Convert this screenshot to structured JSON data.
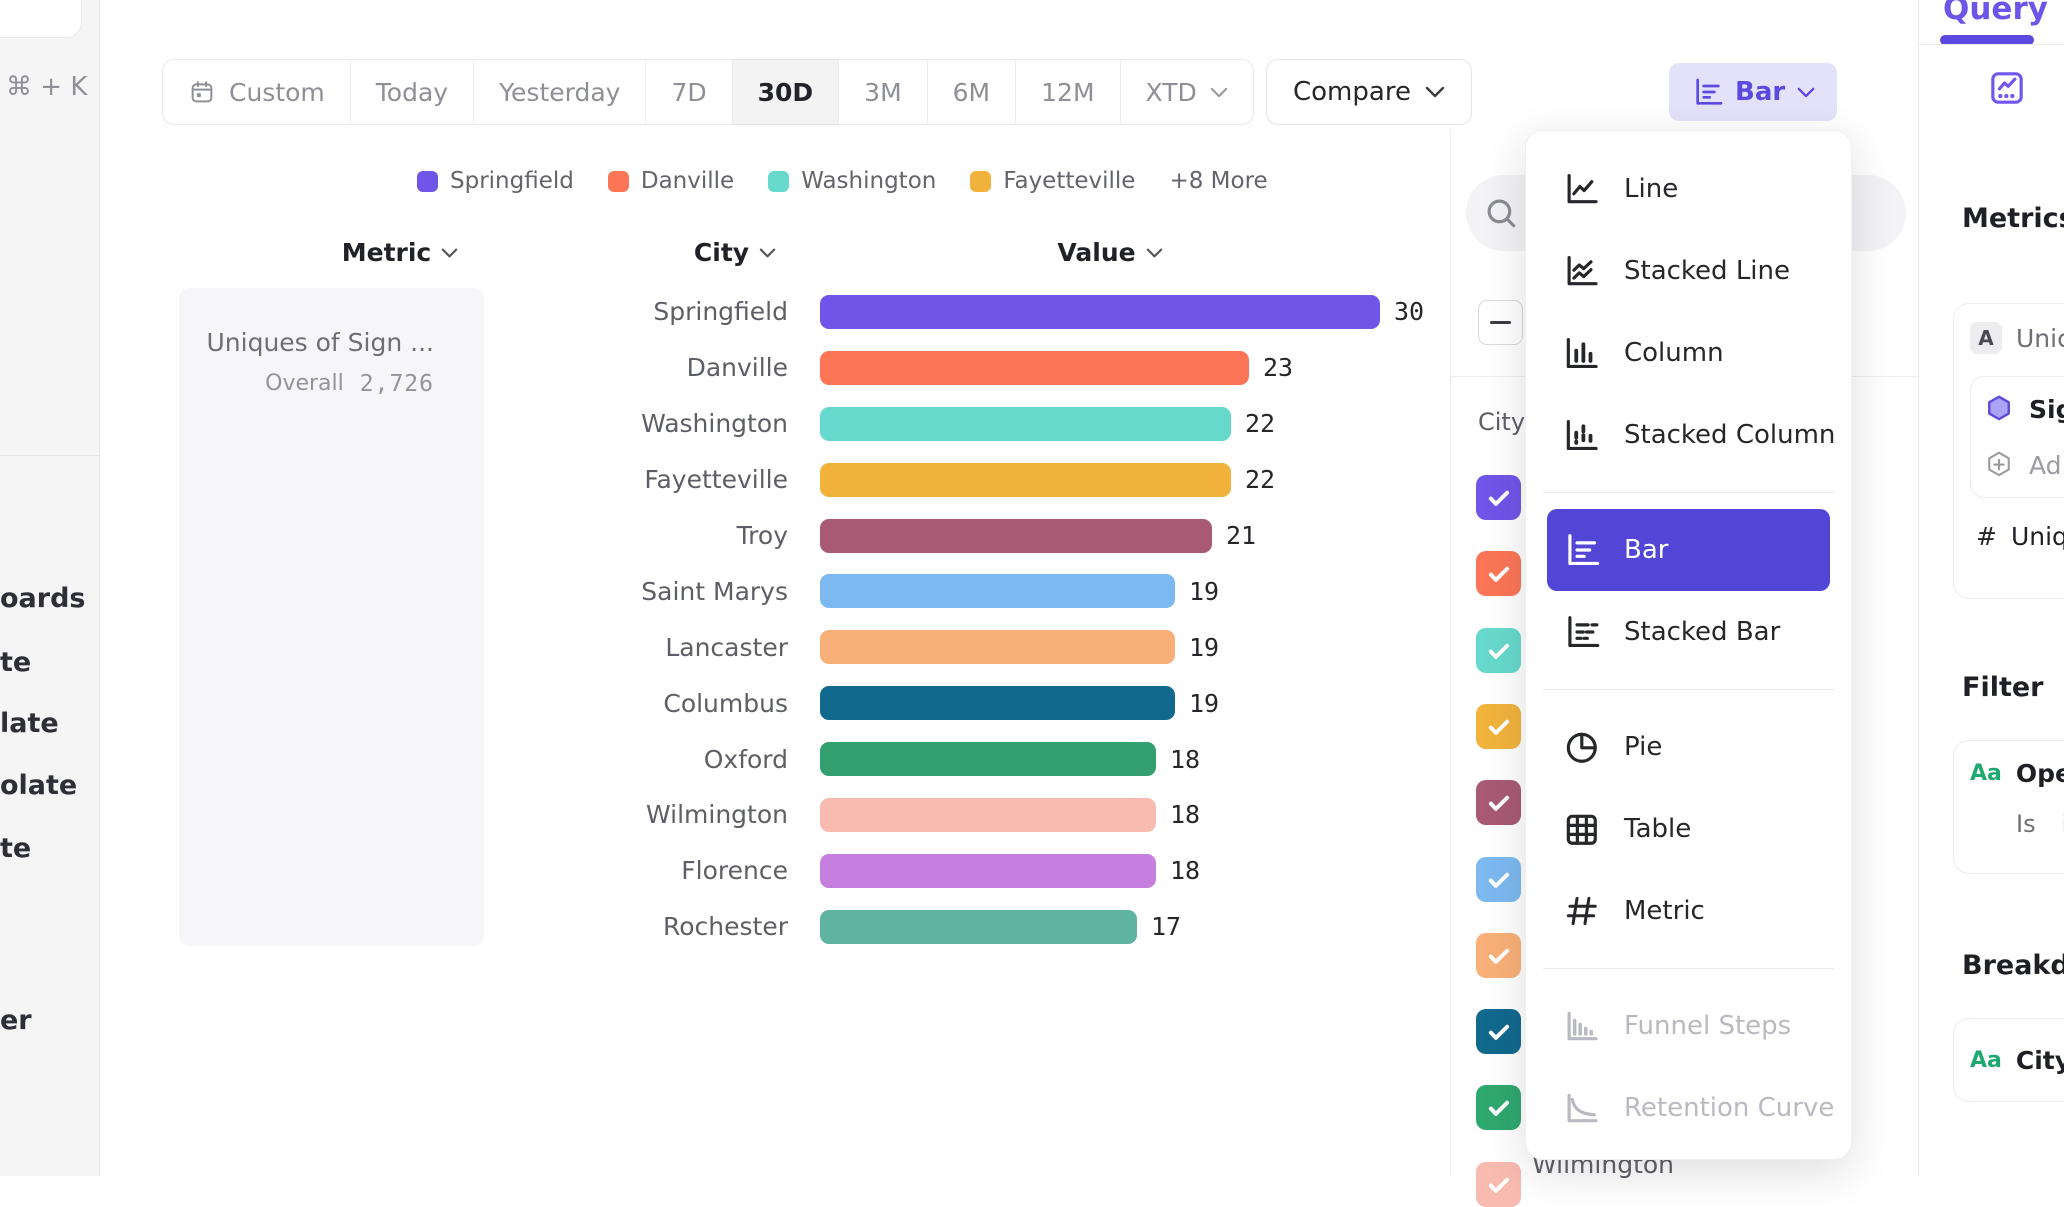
{
  "app": {
    "accent_color": "#5B49E0",
    "selected_menu_color": "#5246D7"
  },
  "left_sidebar": {
    "shortcut_label": "⌘ + K",
    "items": [
      "oards",
      "te",
      "late",
      "olate",
      "te",
      "er"
    ]
  },
  "toolbar": {
    "segments": [
      {
        "label": "Custom",
        "icon": "calendar-icon"
      },
      {
        "label": "Today"
      },
      {
        "label": "Yesterday"
      },
      {
        "label": "7D"
      },
      {
        "label": "30D",
        "active": true
      },
      {
        "label": "3M"
      },
      {
        "label": "6M"
      },
      {
        "label": "12M"
      },
      {
        "label": "XTD",
        "chevron": true
      }
    ],
    "active_range": "30D",
    "compare_label": "Compare",
    "chart_type_button": {
      "label": "Bar",
      "icon": "bar-chart-icon"
    }
  },
  "legend": {
    "items": [
      {
        "label": "Springfield",
        "color": "#6F55E8"
      },
      {
        "label": "Danville",
        "color": "#FC7557"
      },
      {
        "label": "Washington",
        "color": "#67D9CC"
      },
      {
        "label": "Fayetteville",
        "color": "#F2B33D"
      }
    ],
    "more_label": "+8 More"
  },
  "table_headers": {
    "metric": "Metric",
    "city": "City",
    "value": "Value"
  },
  "metric_card": {
    "title": "Uniques of Sign ...",
    "overall_label": "Overall",
    "overall_value": "2,726"
  },
  "chart_data": {
    "type": "bar",
    "orientation": "horizontal",
    "title": "Uniques of Sign ...",
    "xlabel": "Value",
    "ylabel": "City",
    "xlim": [
      0,
      30
    ],
    "categories": [
      "Springfield",
      "Danville",
      "Washington",
      "Fayetteville",
      "Troy",
      "Saint Marys",
      "Lancaster",
      "Columbus",
      "Oxford",
      "Wilmington",
      "Florence",
      "Rochester"
    ],
    "values": [
      30,
      23,
      22,
      22,
      21,
      19,
      19,
      19,
      18,
      18,
      18,
      17
    ],
    "colors": [
      "#6F55E8",
      "#FC7557",
      "#67D9CC",
      "#F2B33D",
      "#A85A74",
      "#7CB9F0",
      "#F9B078",
      "#11698E",
      "#339F6E",
      "#F9BAB0",
      "#C67EDF",
      "#5FB3A1"
    ],
    "overall_total": "2,726",
    "legend_position": "top",
    "grid": false
  },
  "city_panel": {
    "header": "City",
    "search_icon": "search-icon",
    "select_all_state": "indeterminate",
    "checkbox_colors": [
      "#6F55E8",
      "#FC7557",
      "#67D9CC",
      "#F2B33D",
      "#A85A74",
      "#7CB9F0",
      "#F9B078",
      "#11698E",
      "#2FA86F",
      "#F9BAB0"
    ],
    "visible_city_label": "Wilmington"
  },
  "chart_menu": {
    "selected": "Bar",
    "groups": [
      {
        "items": [
          {
            "label": "Line",
            "icon": "line-chart-icon"
          },
          {
            "label": "Stacked Line",
            "icon": "stacked-line-icon"
          },
          {
            "label": "Column",
            "icon": "column-chart-icon"
          },
          {
            "label": "Stacked Column",
            "icon": "stacked-column-icon"
          }
        ]
      },
      {
        "items": [
          {
            "label": "Bar",
            "icon": "bar-chart-icon",
            "selected": true
          },
          {
            "label": "Stacked Bar",
            "icon": "stacked-bar-icon"
          }
        ]
      },
      {
        "items": [
          {
            "label": "Pie",
            "icon": "pie-chart-icon"
          },
          {
            "label": "Table",
            "icon": "table-icon"
          },
          {
            "label": "Metric",
            "icon": "metric-hash-icon"
          }
        ]
      },
      {
        "items": [
          {
            "label": "Funnel Steps",
            "icon": "funnel-steps-icon",
            "disabled": true
          },
          {
            "label": "Retention Curve",
            "icon": "retention-curve-icon",
            "disabled": true
          }
        ]
      }
    ]
  },
  "query_panel": {
    "tab_label": "Query",
    "metrics_heading": "Metrics",
    "metric_item_badge": "A",
    "metric_item_label": "Unic",
    "event_label": "Sig",
    "add_label": "Ad",
    "measure_prefix": "#",
    "measure_label": "Uniqu",
    "filter_heading": "Filter",
    "filter_badge": "Aa",
    "filter_label": "Ope",
    "filter_operator": "Is",
    "filter_value": "i",
    "breakdown_heading": "Breakdo",
    "breakdown_badge": "Aa",
    "breakdown_label": "City"
  }
}
